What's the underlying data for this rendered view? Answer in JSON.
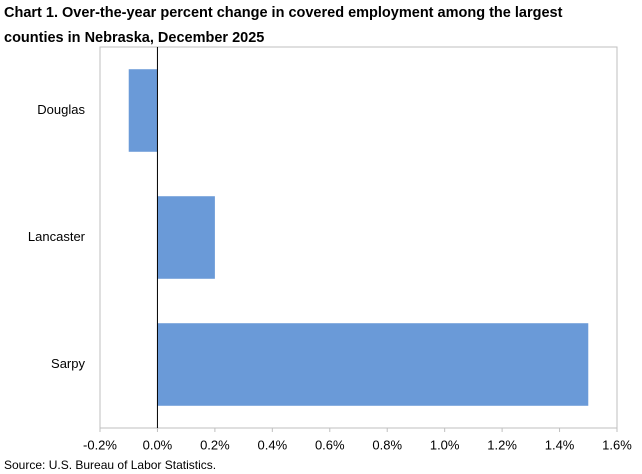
{
  "chart_data": {
    "type": "hbar",
    "title": [
      "Chart 1. Over-the-year percent change in covered employment among the largest",
      "counties in Nebraska, December 2025"
    ],
    "categories": [
      "Douglas",
      "Lancaster",
      "Sarpy"
    ],
    "values": [
      -0.1,
      0.2,
      1.5
    ],
    "color": "#6a9ad8",
    "xlim": [
      -0.2,
      1.6
    ],
    "xticks": [
      {
        "value": -0.2,
        "label": "-0.2%"
      },
      {
        "value": 0,
        "label": "0.0%"
      },
      {
        "value": 0.2,
        "label": "0.2%"
      },
      {
        "value": 0.4,
        "label": "0.4%"
      },
      {
        "value": 0.6,
        "label": "0.6%"
      },
      {
        "value": 0.8,
        "label": "0.8%"
      },
      {
        "value": 1.0,
        "label": "1.0%"
      },
      {
        "value": 1.2,
        "label": "1.2%"
      },
      {
        "value": 1.4,
        "label": "1.4%"
      },
      {
        "value": 1.6,
        "label": "1.6%"
      }
    ],
    "grid": false,
    "source": "Source: U.S. Bureau of Labor Statistics."
  }
}
